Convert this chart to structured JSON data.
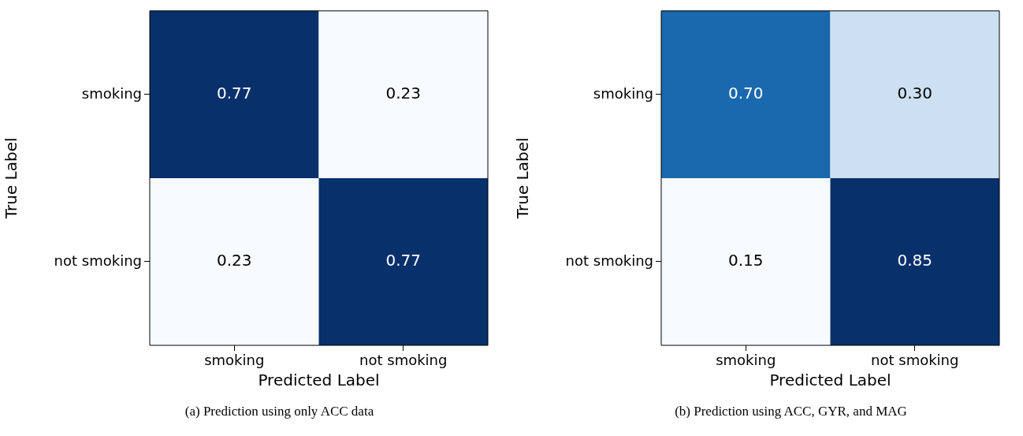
{
  "chart_data": [
    {
      "type": "heatmap",
      "xlabel": "Predicted Label",
      "ylabel": "True Label",
      "categories": [
        "smoking",
        "not smoking"
      ],
      "y_categories": [
        "smoking",
        "not smoking"
      ],
      "cells": [
        [
          0.77,
          0.23
        ],
        [
          0.23,
          0.77
        ]
      ],
      "data_labels": true,
      "annotations": [
        "(a) Prediction using only ACC data"
      ]
    },
    {
      "type": "heatmap",
      "xlabel": "Predicted Label",
      "ylabel": "True Label",
      "categories": [
        "smoking",
        "not smoking"
      ],
      "y_categories": [
        "smoking",
        "not smoking"
      ],
      "cells": [
        [
          0.7,
          0.3
        ],
        [
          0.15,
          0.85
        ]
      ],
      "cell_labels": [
        [
          "0.70",
          "0.30"
        ],
        [
          "0.15",
          "0.85"
        ]
      ],
      "data_labels": true,
      "annotations": [
        "(b) Prediction using ACC, GYR, and MAG"
      ]
    }
  ]
}
